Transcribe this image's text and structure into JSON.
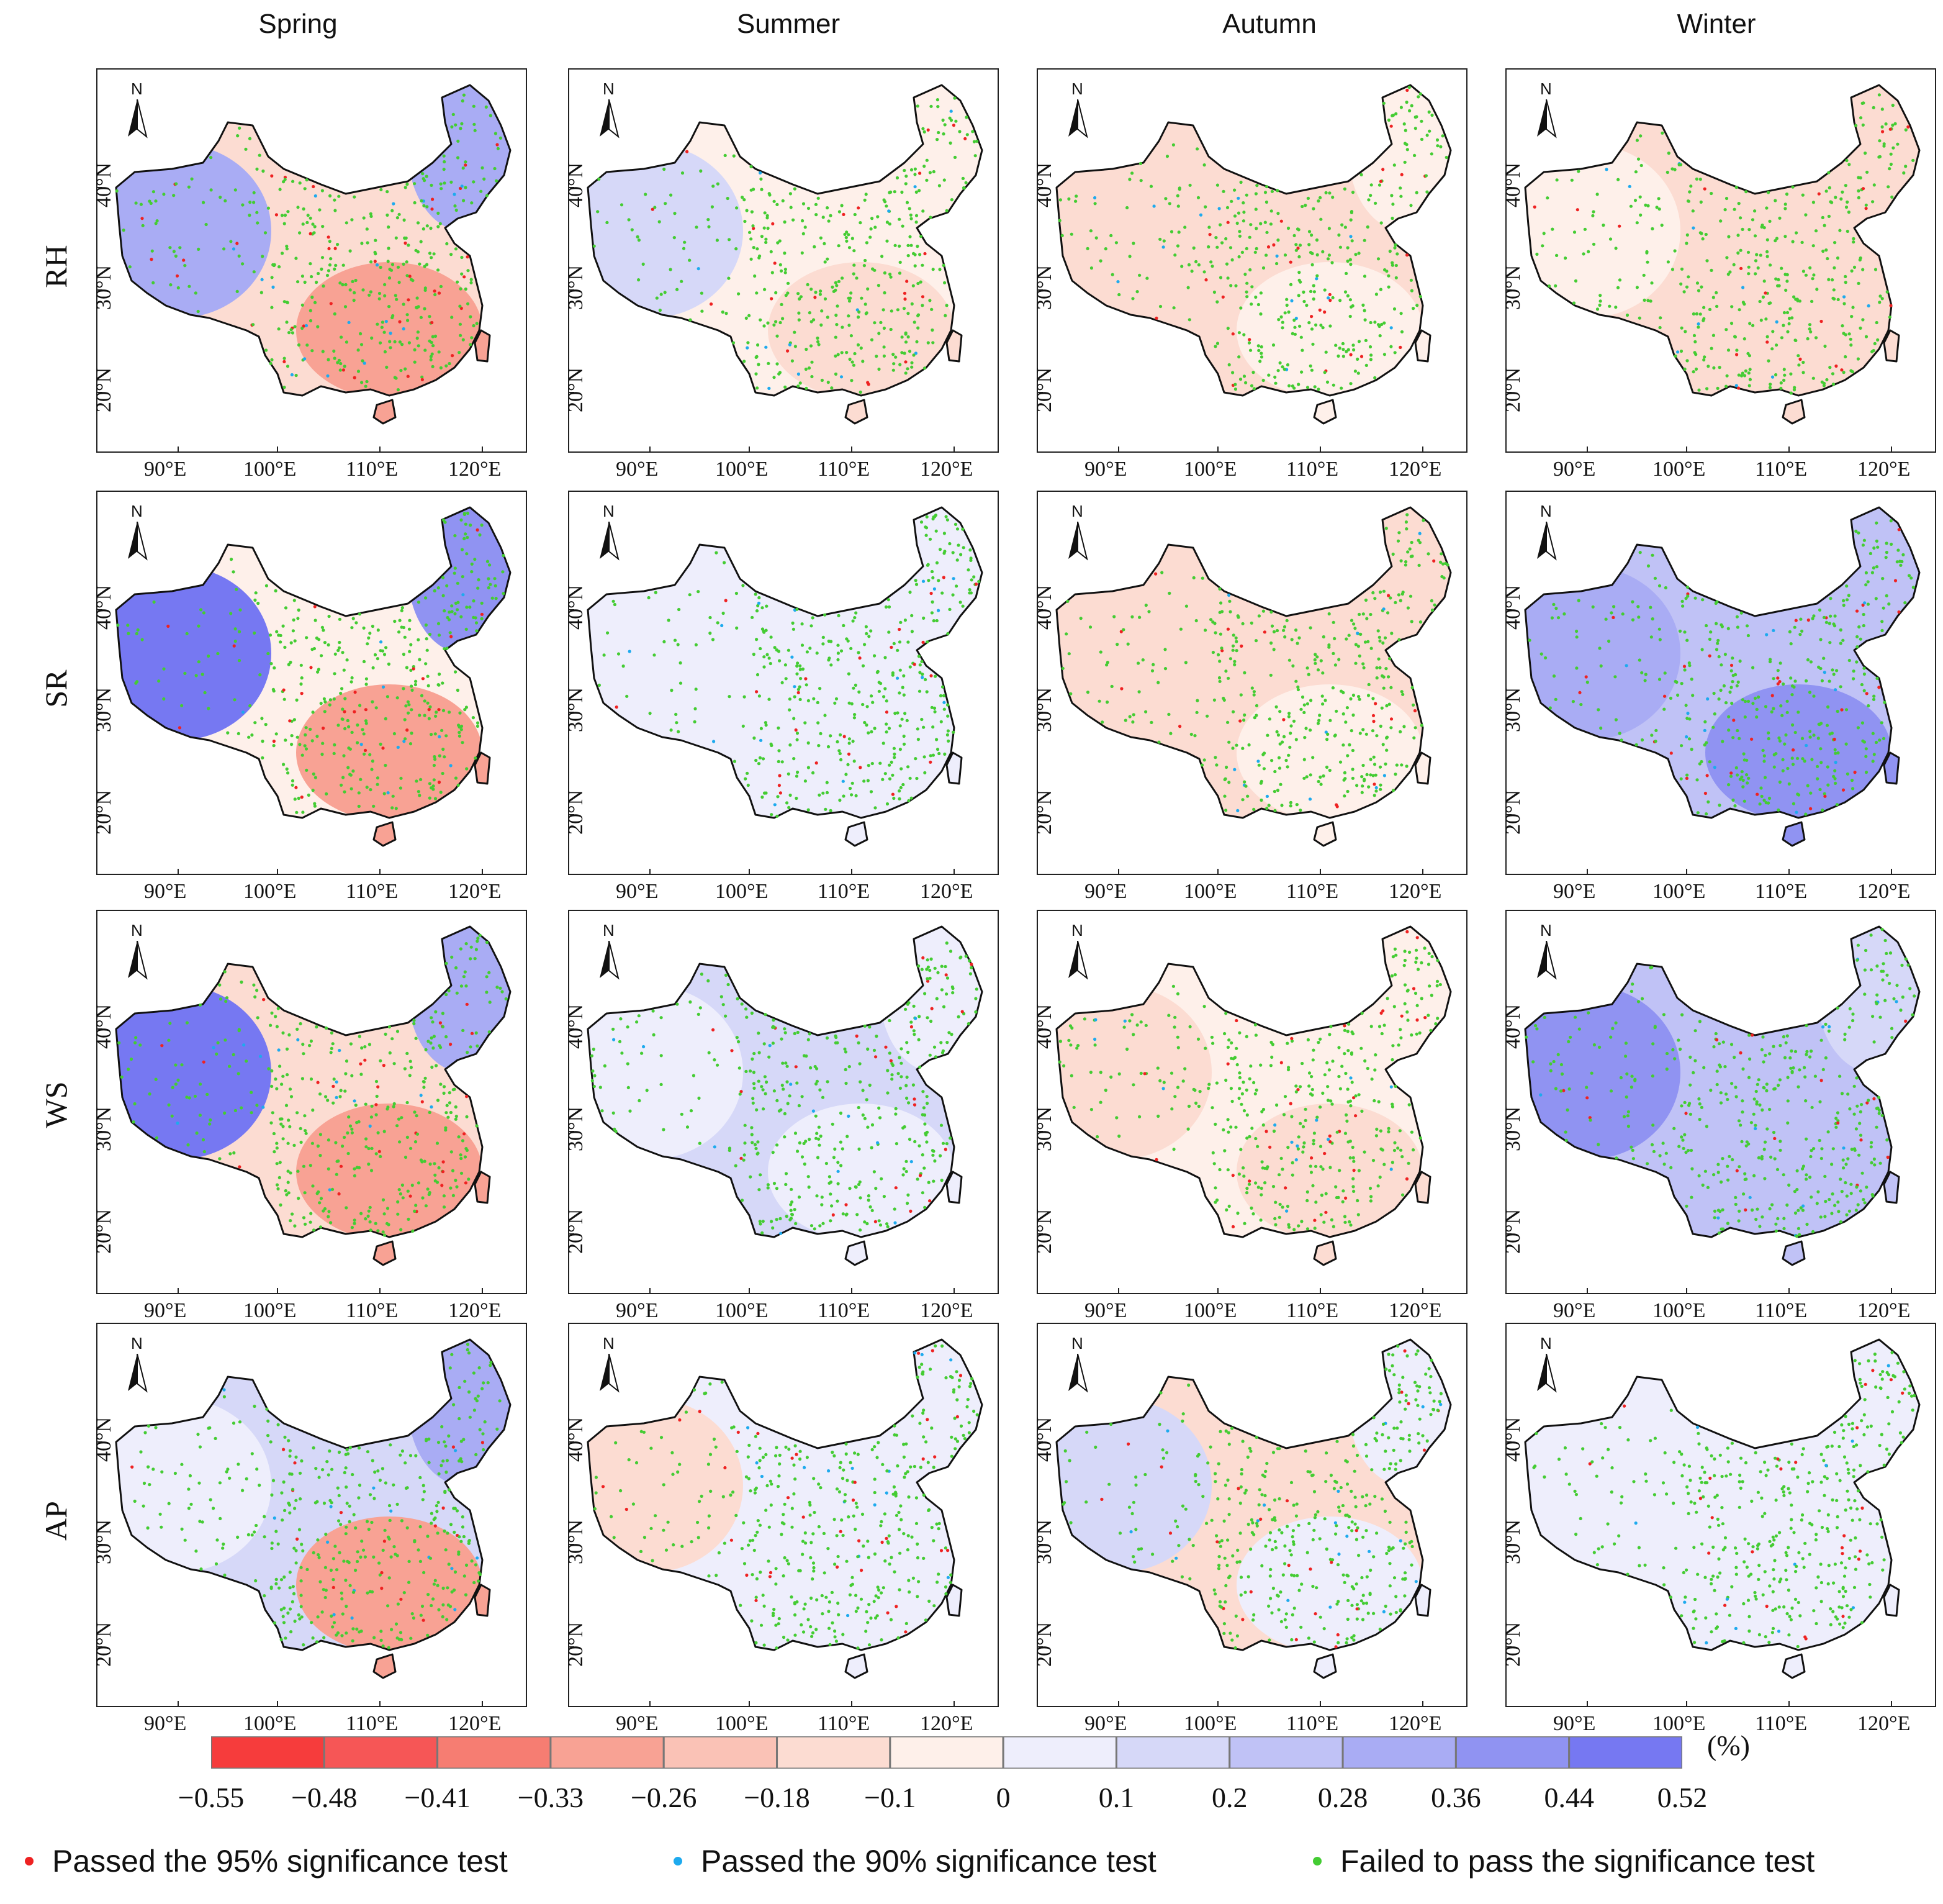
{
  "seasons": [
    "Spring",
    "Summer",
    "Autumn",
    "Winter"
  ],
  "variables": [
    "RH",
    "SR",
    "WS",
    "AP"
  ],
  "longitude_labels": [
    "90°E",
    "100°E",
    "110°E",
    "120°E"
  ],
  "latitude_labels": [
    "20°N",
    "30°N",
    "40°N"
  ],
  "north_arrow_label": "N",
  "colorbar": {
    "unit": "(%)",
    "ticks": [
      "−0.55",
      "−0.48",
      "−0.41",
      "−0.33",
      "−0.26",
      "−0.18",
      "−0.1",
      "0",
      "0.1",
      "0.2",
      "0.28",
      "0.36",
      "0.44",
      "0.52"
    ],
    "colors": [
      "#f63c3c",
      "#f65656",
      "#f67d72",
      "#f8a294",
      "#fac2b6",
      "#fcdcd2",
      "#fef0ea",
      "#eeeefc",
      "#d6d8f8",
      "#c0c2f6",
      "#a9acf4",
      "#9093f2",
      "#7678f2"
    ]
  },
  "legend": [
    {
      "label": "Passed the 95% significance test",
      "color": "#ee2222"
    },
    {
      "label": "Passed the 90% significance test",
      "color": "#1eaaee"
    },
    {
      "label": "Failed to pass the significance test",
      "color": "#44cc33"
    }
  ],
  "panels": [
    {
      "variable": "RH",
      "season": "Spring",
      "west": "#a9acf4",
      "center": "#fcdcd2",
      "southeast": "#f8a294",
      "northeast": "#a9acf4"
    },
    {
      "variable": "RH",
      "season": "Summer",
      "west": "#d6d8f8",
      "center": "#fef0ea",
      "southeast": "#fcdcd2",
      "northeast": "#fef0ea"
    },
    {
      "variable": "RH",
      "season": "Autumn",
      "west": "#fcdcd2",
      "center": "#fcdcd2",
      "southeast": "#fef0ea",
      "northeast": "#fef0ea"
    },
    {
      "variable": "RH",
      "season": "Winter",
      "west": "#fef0ea",
      "center": "#fcdcd2",
      "southeast": "#fcdcd2",
      "northeast": "#fcdcd2"
    },
    {
      "variable": "SR",
      "season": "Spring",
      "west": "#7678f2",
      "center": "#fef0ea",
      "southeast": "#f8a294",
      "northeast": "#9093f2"
    },
    {
      "variable": "SR",
      "season": "Summer",
      "west": "#eeeefc",
      "center": "#eeeefc",
      "southeast": "#eeeefc",
      "northeast": "#eeeefc"
    },
    {
      "variable": "SR",
      "season": "Autumn",
      "west": "#fcdcd2",
      "center": "#fcdcd2",
      "southeast": "#fef0ea",
      "northeast": "#fcdcd2"
    },
    {
      "variable": "SR",
      "season": "Winter",
      "west": "#a9acf4",
      "center": "#c0c2f6",
      "southeast": "#9093f2",
      "northeast": "#c0c2f6"
    },
    {
      "variable": "WS",
      "season": "Spring",
      "west": "#7678f2",
      "center": "#fcdcd2",
      "southeast": "#f8a294",
      "northeast": "#a9acf4"
    },
    {
      "variable": "WS",
      "season": "Summer",
      "west": "#eeeefc",
      "center": "#d6d8f8",
      "southeast": "#eeeefc",
      "northeast": "#eeeefc"
    },
    {
      "variable": "WS",
      "season": "Autumn",
      "west": "#fcdcd2",
      "center": "#fef0ea",
      "southeast": "#fcdcd2",
      "northeast": "#fef0ea"
    },
    {
      "variable": "WS",
      "season": "Winter",
      "west": "#9093f2",
      "center": "#c0c2f6",
      "southeast": "#c0c2f6",
      "northeast": "#d6d8f8"
    },
    {
      "variable": "AP",
      "season": "Spring",
      "west": "#eeeefc",
      "center": "#d6d8f8",
      "southeast": "#f8a294",
      "northeast": "#a9acf4"
    },
    {
      "variable": "AP",
      "season": "Summer",
      "west": "#fcdcd2",
      "center": "#eeeefc",
      "southeast": "#eeeefc",
      "northeast": "#eeeefc"
    },
    {
      "variable": "AP",
      "season": "Autumn",
      "west": "#d6d8f8",
      "center": "#fcdcd2",
      "southeast": "#eeeefc",
      "northeast": "#eeeefc"
    },
    {
      "variable": "AP",
      "season": "Winter",
      "west": "#eeeefc",
      "center": "#eeeefc",
      "southeast": "#eeeefc",
      "northeast": "#eeeefc"
    }
  ]
}
